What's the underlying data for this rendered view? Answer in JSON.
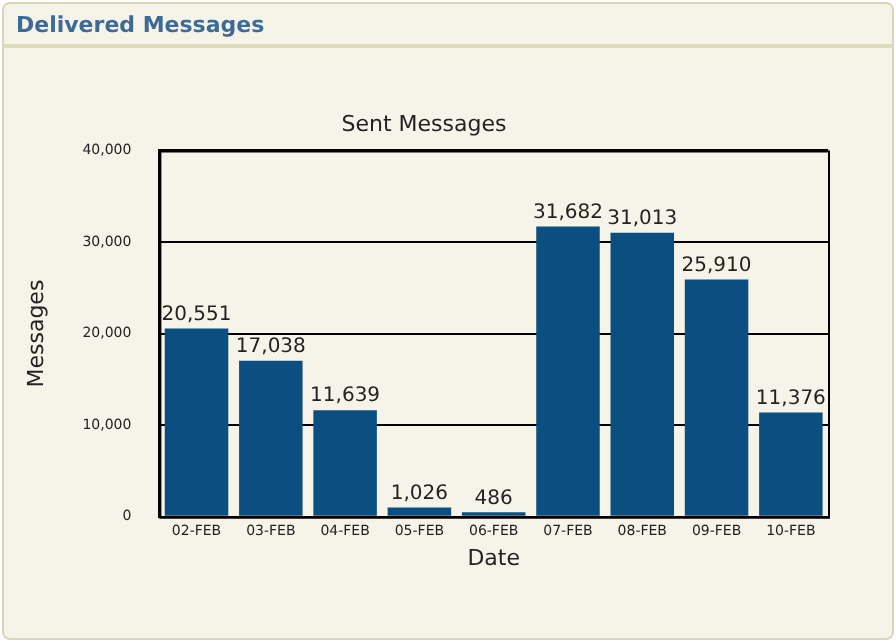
{
  "chart_data": {
    "type": "bar",
    "title": "Delivered Messages",
    "subtitle": "Sent Messages",
    "xlabel": "Date",
    "ylabel": "Messages",
    "categories": [
      "02-FEB",
      "03-FEB",
      "04-FEB",
      "05-FEB",
      "06-FEB",
      "07-FEB",
      "08-FEB",
      "09-FEB",
      "10-FEB"
    ],
    "values": [
      20551,
      17038,
      11639,
      1026,
      486,
      31682,
      31013,
      25910,
      11376
    ],
    "value_labels": [
      "20,551",
      "17,038",
      "11,639",
      "1,026",
      "486",
      "31,682",
      "31,013",
      "25,910",
      "11,376"
    ],
    "color": "#0b4f80",
    "ylim": [
      0,
      40000
    ],
    "yticks": [
      {
        "value": 0,
        "label": "0"
      },
      {
        "value": 10000,
        "label": "10,000"
      },
      {
        "value": 20000,
        "label": "20,000"
      },
      {
        "value": 30000,
        "label": "30,000"
      },
      {
        "value": 40000,
        "label": "40,000"
      }
    ],
    "grid": "y",
    "legend": false
  }
}
